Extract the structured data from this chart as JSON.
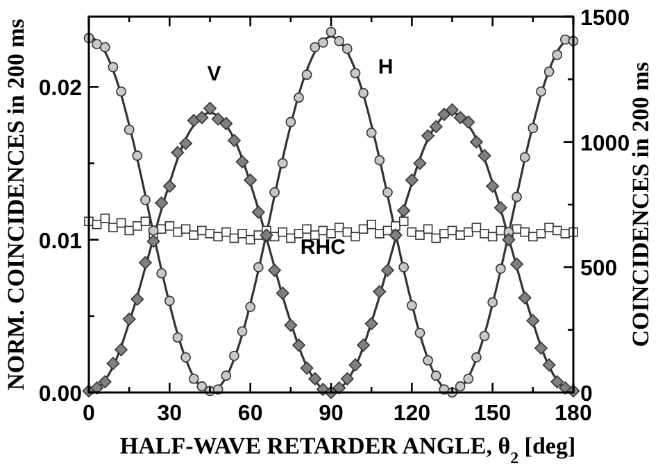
{
  "chart_data": {
    "type": "scatter",
    "xlabel": "HALF-WAVE RETARDER ANGLE, θ$_{2}$ [deg]",
    "ylabel": "NORM. COINCIDENCES in 200 ms",
    "y2label": "COINCIDENCES in 200 ms",
    "x": [
      0,
      3,
      6,
      9,
      12,
      15,
      18,
      21,
      24,
      27,
      30,
      33,
      36,
      39,
      42,
      45,
      48,
      51,
      54,
      57,
      60,
      63,
      66,
      69,
      72,
      75,
      78,
      81,
      84,
      87,
      90,
      93,
      96,
      99,
      102,
      105,
      108,
      111,
      114,
      117,
      120,
      123,
      126,
      129,
      132,
      135,
      138,
      141,
      144,
      147,
      150,
      153,
      156,
      159,
      162,
      165,
      168,
      171,
      174,
      177,
      180
    ],
    "xlim": [
      0,
      180
    ],
    "xticks": [
      0,
      {
        "value": 15,
        "label": null
      },
      30,
      {
        "value": 45,
        "label": null
      },
      60,
      {
        "value": 75,
        "label": null
      },
      90,
      {
        "value": 105,
        "label": null
      },
      120,
      {
        "value": 135,
        "label": null
      },
      150,
      {
        "value": 165,
        "label": null
      },
      180
    ],
    "ylim": [
      0,
      0.0246
    ],
    "yticks": [
      {
        "value": 0,
        "label": "0.00"
      },
      {
        "value": 0.005,
        "label": null
      },
      {
        "value": 0.01,
        "label": "0.01"
      },
      {
        "value": 0.015,
        "label": null
      },
      {
        "value": 0.02,
        "label": "0.02"
      }
    ],
    "y2lim": [
      0,
      1500
    ],
    "y2ticks": [
      0,
      {
        "value": 250,
        "label": null
      },
      500,
      {
        "value": 750,
        "label": null
      },
      1000,
      {
        "value": 1250,
        "label": null
      },
      1500
    ],
    "grid": false,
    "legend": false,
    "series": [
      {
        "type": "line",
        "color": "#333333",
        "marker": "none",
        "values": [
          0.0233,
          0.023,
          0.0223,
          0.0211,
          0.0195,
          0.0175,
          0.0153,
          0.0129,
          0.0104,
          0.008,
          0.0058,
          0.0038,
          0.0022,
          0.001,
          0.0003,
          0,
          0.0003,
          0.001,
          0.0022,
          0.0038,
          0.0058,
          0.008,
          0.0104,
          0.0129,
          0.0153,
          0.0175,
          0.0195,
          0.0211,
          0.0223,
          0.023,
          0.0233,
          0.023,
          0.0223,
          0.0211,
          0.0195,
          0.0175,
          0.0153,
          0.0129,
          0.0104,
          0.008,
          0.0058,
          0.0038,
          0.0022,
          0.001,
          0.0003,
          0,
          0.0003,
          0.001,
          0.0022,
          0.0038,
          0.0058,
          0.008,
          0.0104,
          0.0129,
          0.0153,
          0.0175,
          0.0195,
          0.0211,
          0.0223,
          0.023,
          0.0233
        ]
      },
      {
        "type": "line",
        "color": "#333333",
        "marker": "none",
        "values": [
          0,
          0.0002,
          0.0008,
          0.0017,
          0.003,
          0.0046,
          0.0063,
          0.0082,
          0.0101,
          0.012,
          0.0137,
          0.0153,
          0.0166,
          0.0175,
          0.0181,
          0.0183,
          0.0181,
          0.0175,
          0.0166,
          0.0153,
          0.0137,
          0.012,
          0.0101,
          0.0082,
          0.0063,
          0.0046,
          0.003,
          0.0017,
          0.0008,
          0.0002,
          0,
          0.0002,
          0.0008,
          0.0017,
          0.003,
          0.0046,
          0.0063,
          0.0082,
          0.0101,
          0.012,
          0.0137,
          0.0153,
          0.0166,
          0.0175,
          0.0181,
          0.0183,
          0.0181,
          0.0175,
          0.0166,
          0.0153,
          0.0137,
          0.012,
          0.0101,
          0.0082,
          0.0063,
          0.0046,
          0.003,
          0.0017,
          0.0008,
          0.0002,
          0
        ]
      },
      {
        "name": "RHC",
        "color": "#ffffff",
        "marker": "square",
        "values": [
          0.0112,
          0.011,
          0.0114,
          0.0108,
          0.0111,
          0.0106,
          0.0109,
          0.0112,
          0.0104,
          0.0107,
          0.0109,
          0.0105,
          0.0107,
          0.0103,
          0.0106,
          0.0104,
          0.0102,
          0.0105,
          0.0101,
          0.0104,
          0.01,
          0.0103,
          0.0106,
          0.0102,
          0.0105,
          0.0101,
          0.0104,
          0.0107,
          0.0103,
          0.0106,
          0.0104,
          0.0108,
          0.0105,
          0.0102,
          0.0107,
          0.011,
          0.0104,
          0.0106,
          0.0109,
          0.0112,
          0.0105,
          0.0103,
          0.0107,
          0.0101,
          0.0104,
          0.0106,
          0.0103,
          0.0105,
          0.0108,
          0.0104,
          0.0102,
          0.0106,
          0.0103,
          0.0107,
          0.0105,
          0.0102,
          0.0104,
          0.0108,
          0.0106,
          0.0104,
          0.0105
        ]
      },
      {
        "name": "H",
        "color": "#c8c8c8",
        "marker": "circle",
        "values": [
          0.0232,
          0.0228,
          0.0226,
          0.0213,
          0.0197,
          0.0172,
          0.0155,
          0.0126,
          0.0106,
          0.0078,
          0.006,
          0.0036,
          0.0023,
          0.0009,
          0.0004,
          0.0001,
          0.0002,
          0.0011,
          0.0024,
          0.004,
          0.0056,
          0.0082,
          0.0102,
          0.0131,
          0.015,
          0.0177,
          0.0193,
          0.0208,
          0.0226,
          0.0229,
          0.0236,
          0.023,
          0.0225,
          0.0209,
          0.0196,
          0.017,
          0.0152,
          0.0131,
          0.0103,
          0.0082,
          0.0057,
          0.0039,
          0.0021,
          0.0011,
          0.0002,
          0.0,
          0.0004,
          0.0009,
          0.0023,
          0.0037,
          0.0059,
          0.0081,
          0.0105,
          0.0128,
          0.0154,
          0.0173,
          0.0197,
          0.021,
          0.0221,
          0.0231,
          0.023
        ]
      },
      {
        "name": "V",
        "color": "#808080",
        "marker": "diamond",
        "values": [
          0.0001,
          0.0003,
          0.0007,
          0.0019,
          0.0028,
          0.0048,
          0.0061,
          0.0085,
          0.0099,
          0.0124,
          0.0135,
          0.0157,
          0.0163,
          0.0178,
          0.018,
          0.0186,
          0.0179,
          0.0176,
          0.0165,
          0.0151,
          0.0139,
          0.0118,
          0.0103,
          0.008,
          0.0065,
          0.0044,
          0.0031,
          0.0016,
          0.0009,
          0.0002,
          0.0,
          0.0003,
          0.0009,
          0.0018,
          0.0031,
          0.0045,
          0.0066,
          0.008,
          0.0103,
          0.0119,
          0.0139,
          0.015,
          0.0168,
          0.0174,
          0.0182,
          0.0185,
          0.018,
          0.0177,
          0.0164,
          0.0155,
          0.0135,
          0.0121,
          0.01,
          0.0084,
          0.0062,
          0.0047,
          0.0029,
          0.0018,
          0.0007,
          0.0003,
          0.0001
        ]
      }
    ]
  }
}
